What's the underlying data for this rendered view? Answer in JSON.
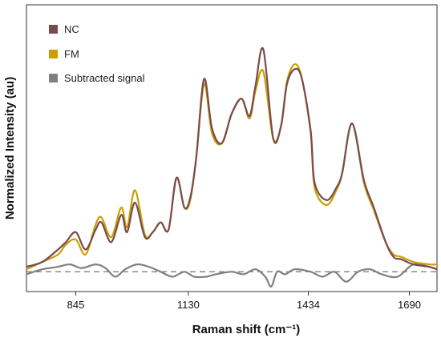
{
  "chart_data": {
    "type": "line",
    "title": "",
    "xlabel": "Raman shift (cm⁻¹)",
    "ylabel": "Normalized Intensity (au)",
    "x_ticks": [
      845,
      1130,
      1434,
      1690
    ],
    "xlim": [
      720,
      1760
    ],
    "ylim": [
      -0.08,
      1.08
    ],
    "legend_position": "top-left",
    "baseline": 0.0,
    "grid": false,
    "series": [
      {
        "name": "NC",
        "color": "#7b4a4e",
        "x": [
          720,
          760,
          800,
          820,
          845,
          870,
          895,
          910,
          935,
          960,
          975,
          995,
          1020,
          1040,
          1060,
          1080,
          1100,
          1120,
          1135,
          1150,
          1170,
          1190,
          1215,
          1240,
          1265,
          1285,
          1300,
          1320,
          1345,
          1365,
          1380,
          1400,
          1418,
          1440,
          1450,
          1480,
          1505,
          1520,
          1545,
          1575,
          1600,
          1630,
          1650,
          1670,
          1700,
          1740,
          1760
        ],
        "y": [
          0.02,
          0.04,
          0.09,
          0.12,
          0.16,
          0.09,
          0.17,
          0.2,
          0.12,
          0.23,
          0.16,
          0.28,
          0.14,
          0.16,
          0.2,
          0.17,
          0.38,
          0.26,
          0.3,
          0.46,
          0.78,
          0.58,
          0.52,
          0.64,
          0.7,
          0.63,
          0.75,
          0.9,
          0.54,
          0.59,
          0.76,
          0.82,
          0.78,
          0.57,
          0.36,
          0.29,
          0.34,
          0.4,
          0.6,
          0.37,
          0.26,
          0.12,
          0.06,
          0.05,
          0.03,
          0.02,
          0.01
        ]
      },
      {
        "name": "FM",
        "color": "#c9a000",
        "x": [
          720,
          760,
          800,
          820,
          845,
          870,
          895,
          910,
          935,
          960,
          975,
          995,
          1020,
          1040,
          1060,
          1080,
          1100,
          1120,
          1135,
          1150,
          1170,
          1190,
          1215,
          1240,
          1265,
          1285,
          1300,
          1320,
          1345,
          1365,
          1380,
          1400,
          1418,
          1440,
          1450,
          1480,
          1505,
          1520,
          1545,
          1575,
          1600,
          1630,
          1650,
          1670,
          1700,
          1740,
          1760
        ],
        "y": [
          0.01,
          0.04,
          0.07,
          0.11,
          0.13,
          0.07,
          0.19,
          0.22,
          0.14,
          0.26,
          0.18,
          0.33,
          0.15,
          0.16,
          0.2,
          0.17,
          0.38,
          0.26,
          0.29,
          0.46,
          0.76,
          0.56,
          0.52,
          0.64,
          0.7,
          0.62,
          0.73,
          0.81,
          0.54,
          0.59,
          0.77,
          0.84,
          0.78,
          0.56,
          0.34,
          0.27,
          0.33,
          0.4,
          0.6,
          0.36,
          0.25,
          0.12,
          0.07,
          0.06,
          0.04,
          0.03,
          0.03
        ]
      },
      {
        "name": "Subtracted signal",
        "color": "#808080",
        "x": [
          720,
          760,
          800,
          830,
          860,
          895,
          920,
          945,
          970,
          1000,
          1030,
          1060,
          1090,
          1120,
          1145,
          1175,
          1200,
          1240,
          1270,
          1300,
          1325,
          1340,
          1355,
          1375,
          1400,
          1440,
          1470,
          1500,
          1530,
          1560,
          1590,
          1620,
          1660,
          1700,
          1740,
          1760
        ],
        "y": [
          -0.01,
          0.01,
          0.02,
          0.03,
          0.015,
          0.03,
          0.015,
          -0.02,
          0.01,
          0.03,
          0.02,
          0.0,
          -0.02,
          0.0,
          -0.02,
          -0.02,
          -0.01,
          0.0,
          -0.01,
          0.01,
          -0.02,
          -0.06,
          0.0,
          -0.01,
          0.01,
          0.0,
          -0.02,
          0.0,
          -0.04,
          0.0,
          0.01,
          -0.01,
          -0.02,
          0.03,
          0.02,
          0.01
        ]
      }
    ]
  }
}
